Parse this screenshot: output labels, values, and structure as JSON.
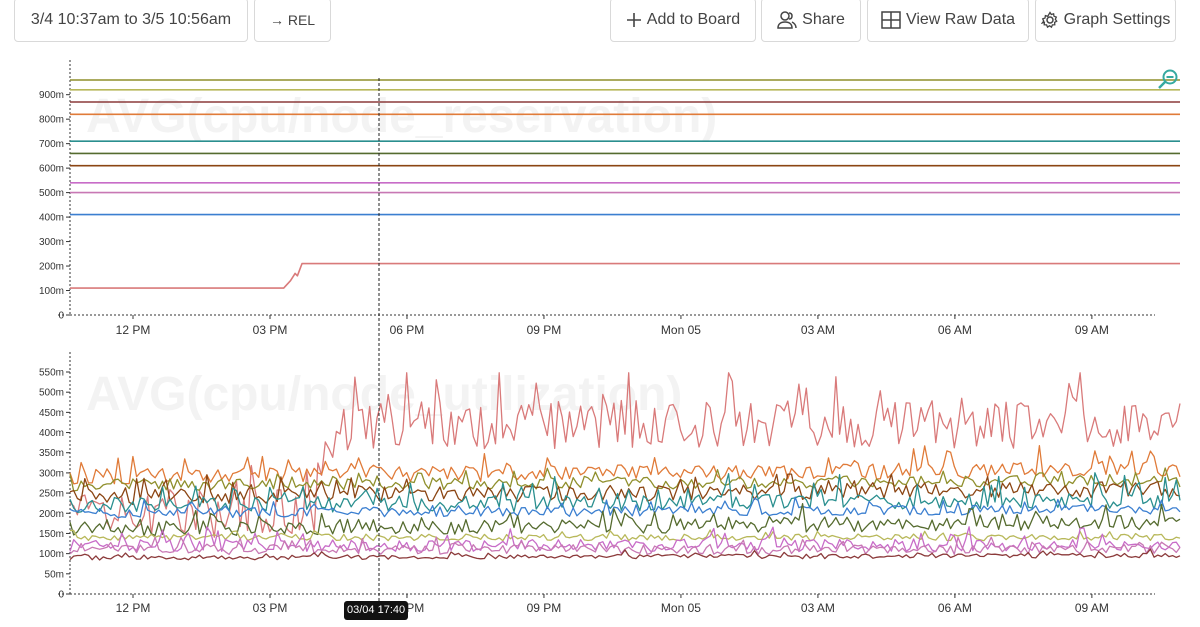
{
  "toolbar": {
    "time_range": "3/4 10:37am to 3/5 10:56am",
    "rel_label": "→ REL",
    "add_to_board": "Add to Board",
    "share": "Share",
    "view_raw_data": "View Raw Data",
    "graph_settings": "Graph Settings"
  },
  "hover": {
    "time_label": "03/04 17:40"
  },
  "chart_data": [
    {
      "type": "line",
      "title": "AVG(cpu/node_reservation)",
      "y_ticks": [
        "900m",
        "800m",
        "700m",
        "600m",
        "500m",
        "400m",
        "300m",
        "200m",
        "100m",
        "0"
      ],
      "ylim": [
        0,
        0.96
      ],
      "x_ticks": [
        "12 PM",
        "03 PM",
        "06 PM",
        "09 PM",
        "Mon 05",
        "03 AM",
        "06 AM",
        "09 AM"
      ],
      "x_tick_hours": [
        12,
        15,
        18,
        21,
        24,
        27,
        30,
        33
      ],
      "xlim_hours": [
        10.62,
        34.93
      ],
      "series": [
        {
          "color": "#8f8f2c",
          "values": [
            [
              10.62,
              0.96
            ],
            [
              34.93,
              0.96
            ]
          ]
        },
        {
          "color": "#b8b85a",
          "values": [
            [
              10.62,
              0.92
            ],
            [
              34.93,
              0.92
            ]
          ]
        },
        {
          "color": "#8b3a3a",
          "values": [
            [
              10.62,
              0.87
            ],
            [
              34.93,
              0.87
            ]
          ]
        },
        {
          "color": "#e07b39",
          "values": [
            [
              10.62,
              0.82
            ],
            [
              34.93,
              0.82
            ]
          ]
        },
        {
          "color": "#2a8f8f",
          "values": [
            [
              10.62,
              0.71
            ],
            [
              34.93,
              0.71
            ]
          ]
        },
        {
          "color": "#556b2f",
          "values": [
            [
              10.62,
              0.66
            ],
            [
              34.93,
              0.66
            ]
          ]
        },
        {
          "color": "#8b4513",
          "values": [
            [
              10.62,
              0.61
            ],
            [
              34.93,
              0.61
            ]
          ]
        },
        {
          "color": "#c86cc8",
          "values": [
            [
              10.62,
              0.54
            ],
            [
              34.93,
              0.54
            ]
          ]
        },
        {
          "color": "#c878b4",
          "values": [
            [
              10.62,
              0.5
            ],
            [
              34.93,
              0.5
            ]
          ]
        },
        {
          "color": "#3b7fd0",
          "values": [
            [
              10.62,
              0.41
            ],
            [
              34.93,
              0.41
            ]
          ]
        },
        {
          "color": "#d97a7a",
          "values": [
            [
              10.62,
              0.11
            ],
            [
              15.3,
              0.11
            ],
            [
              15.45,
              0.14
            ],
            [
              15.55,
              0.17
            ],
            [
              15.6,
              0.16
            ],
            [
              15.7,
              0.21
            ],
            [
              34.93,
              0.21
            ]
          ]
        }
      ]
    },
    {
      "type": "line",
      "title": "AVG(cpu/node_utilization)",
      "y_ticks": [
        "550m",
        "500m",
        "450m",
        "400m",
        "350m",
        "300m",
        "250m",
        "200m",
        "150m",
        "100m",
        "50m",
        "0"
      ],
      "ylim": [
        0,
        0.55
      ],
      "x_ticks": [
        "12 PM",
        "03 PM",
        "06 PM",
        "09 PM",
        "Mon 05",
        "03 AM",
        "06 AM",
        "09 AM"
      ],
      "x_tick_hours": [
        12,
        15,
        18,
        21,
        24,
        27,
        30,
        33
      ],
      "xlim_hours": [
        10.62,
        34.93
      ],
      "series": [
        {
          "color": "#d97a7a",
          "base_start": 0.2,
          "base_end": 0.42,
          "step_hour": 16.0,
          "noise": 0.06,
          "spike": 0.09
        },
        {
          "color": "#e07b39",
          "base_start": 0.29,
          "base_end": 0.31,
          "noise": 0.02,
          "spike": 0.04
        },
        {
          "color": "#8f8f2c",
          "base_start": 0.27,
          "base_end": 0.28,
          "noise": 0.015,
          "spike": 0.02
        },
        {
          "color": "#8b4513",
          "base_start": 0.24,
          "base_end": 0.26,
          "noise": 0.02,
          "spike": 0.03
        },
        {
          "color": "#2a8f8f",
          "base_start": 0.22,
          "base_end": 0.23,
          "noise": 0.02,
          "spike": 0.05
        },
        {
          "color": "#3b7fd0",
          "base_start": 0.2,
          "base_end": 0.21,
          "noise": 0.012,
          "spike": 0.02
        },
        {
          "color": "#556b2f",
          "base_start": 0.16,
          "base_end": 0.18,
          "noise": 0.02,
          "spike": 0.03
        },
        {
          "color": "#b8b85a",
          "base_start": 0.14,
          "base_end": 0.14,
          "noise": 0.008,
          "spike": 0.01
        },
        {
          "color": "#c86cc8",
          "base_start": 0.12,
          "base_end": 0.12,
          "noise": 0.015,
          "spike": 0.035
        },
        {
          "color": "#c878b4",
          "base_start": 0.11,
          "base_end": 0.11,
          "noise": 0.012,
          "spike": 0.02
        },
        {
          "color": "#8b3a3a",
          "base_start": 0.09,
          "base_end": 0.095,
          "noise": 0.006,
          "spike": 0.01
        }
      ]
    }
  ]
}
